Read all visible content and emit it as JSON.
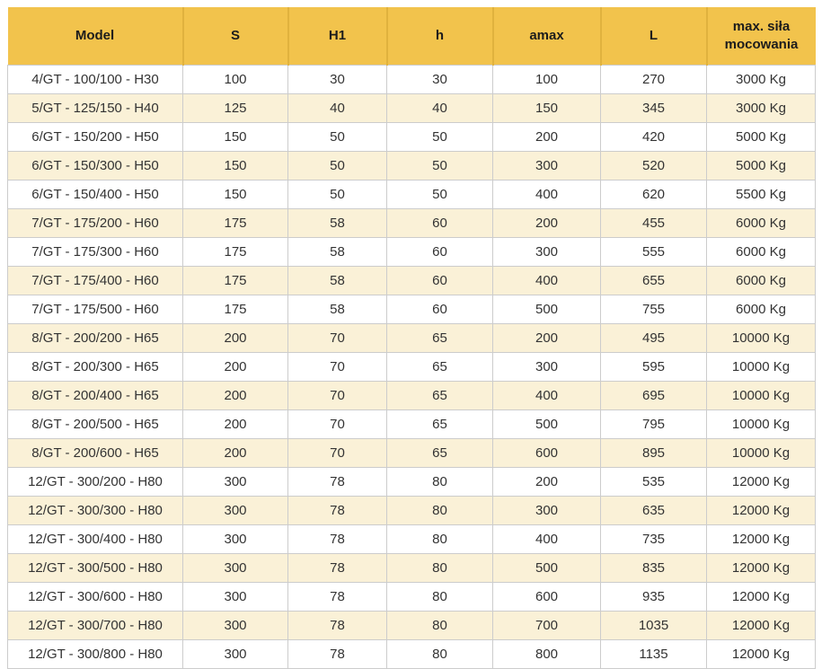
{
  "colors": {
    "header_background": "#F2C34C",
    "header_separator": "#E0B23E",
    "stripe_background": "#FAF1D7",
    "grid_border": "#CCCCCC",
    "text": "#333333"
  },
  "chart_data": {
    "type": "table",
    "title": "",
    "columns": [
      "Model",
      "S",
      "H1",
      "h",
      "amax",
      "L",
      "max. siła mocowania"
    ],
    "rows": [
      [
        "4/GT - 100/100 - H30",
        "100",
        "30",
        "30",
        "100",
        "270",
        "3000 Kg"
      ],
      [
        "5/GT - 125/150 - H40",
        "125",
        "40",
        "40",
        "150",
        "345",
        "3000 Kg"
      ],
      [
        "6/GT - 150/200 - H50",
        "150",
        "50",
        "50",
        "200",
        "420",
        "5000 Kg"
      ],
      [
        "6/GT - 150/300 - H50",
        "150",
        "50",
        "50",
        "300",
        "520",
        "5000 Kg"
      ],
      [
        "6/GT - 150/400 - H50",
        "150",
        "50",
        "50",
        "400",
        "620",
        "5500 Kg"
      ],
      [
        "7/GT - 175/200 - H60",
        "175",
        "58",
        "60",
        "200",
        "455",
        "6000 Kg"
      ],
      [
        "7/GT - 175/300 - H60",
        "175",
        "58",
        "60",
        "300",
        "555",
        "6000 Kg"
      ],
      [
        "7/GT - 175/400 - H60",
        "175",
        "58",
        "60",
        "400",
        "655",
        "6000 Kg"
      ],
      [
        "7/GT - 175/500 - H60",
        "175",
        "58",
        "60",
        "500",
        "755",
        "6000 Kg"
      ],
      [
        "8/GT - 200/200 - H65",
        "200",
        "70",
        "65",
        "200",
        "495",
        "10000 Kg"
      ],
      [
        "8/GT - 200/300 - H65",
        "200",
        "70",
        "65",
        "300",
        "595",
        "10000 Kg"
      ],
      [
        "8/GT - 200/400 - H65",
        "200",
        "70",
        "65",
        "400",
        "695",
        "10000 Kg"
      ],
      [
        "8/GT - 200/500 - H65",
        "200",
        "70",
        "65",
        "500",
        "795",
        "10000 Kg"
      ],
      [
        "8/GT - 200/600 - H65",
        "200",
        "70",
        "65",
        "600",
        "895",
        "10000 Kg"
      ],
      [
        "12/GT - 300/200 - H80",
        "300",
        "78",
        "80",
        "200",
        "535",
        "12000 Kg"
      ],
      [
        "12/GT - 300/300 - H80",
        "300",
        "78",
        "80",
        "300",
        "635",
        "12000 Kg"
      ],
      [
        "12/GT - 300/400 - H80",
        "300",
        "78",
        "80",
        "400",
        "735",
        "12000 Kg"
      ],
      [
        "12/GT - 300/500 - H80",
        "300",
        "78",
        "80",
        "500",
        "835",
        "12000 Kg"
      ],
      [
        "12/GT - 300/600 - H80",
        "300",
        "78",
        "80",
        "600",
        "935",
        "12000 Kg"
      ],
      [
        "12/GT - 300/700 - H80",
        "300",
        "78",
        "80",
        "700",
        "1035",
        "12000 Kg"
      ],
      [
        "12/GT - 300/800 - H80",
        "300",
        "78",
        "80",
        "800",
        "1135",
        "12000 Kg"
      ]
    ]
  }
}
